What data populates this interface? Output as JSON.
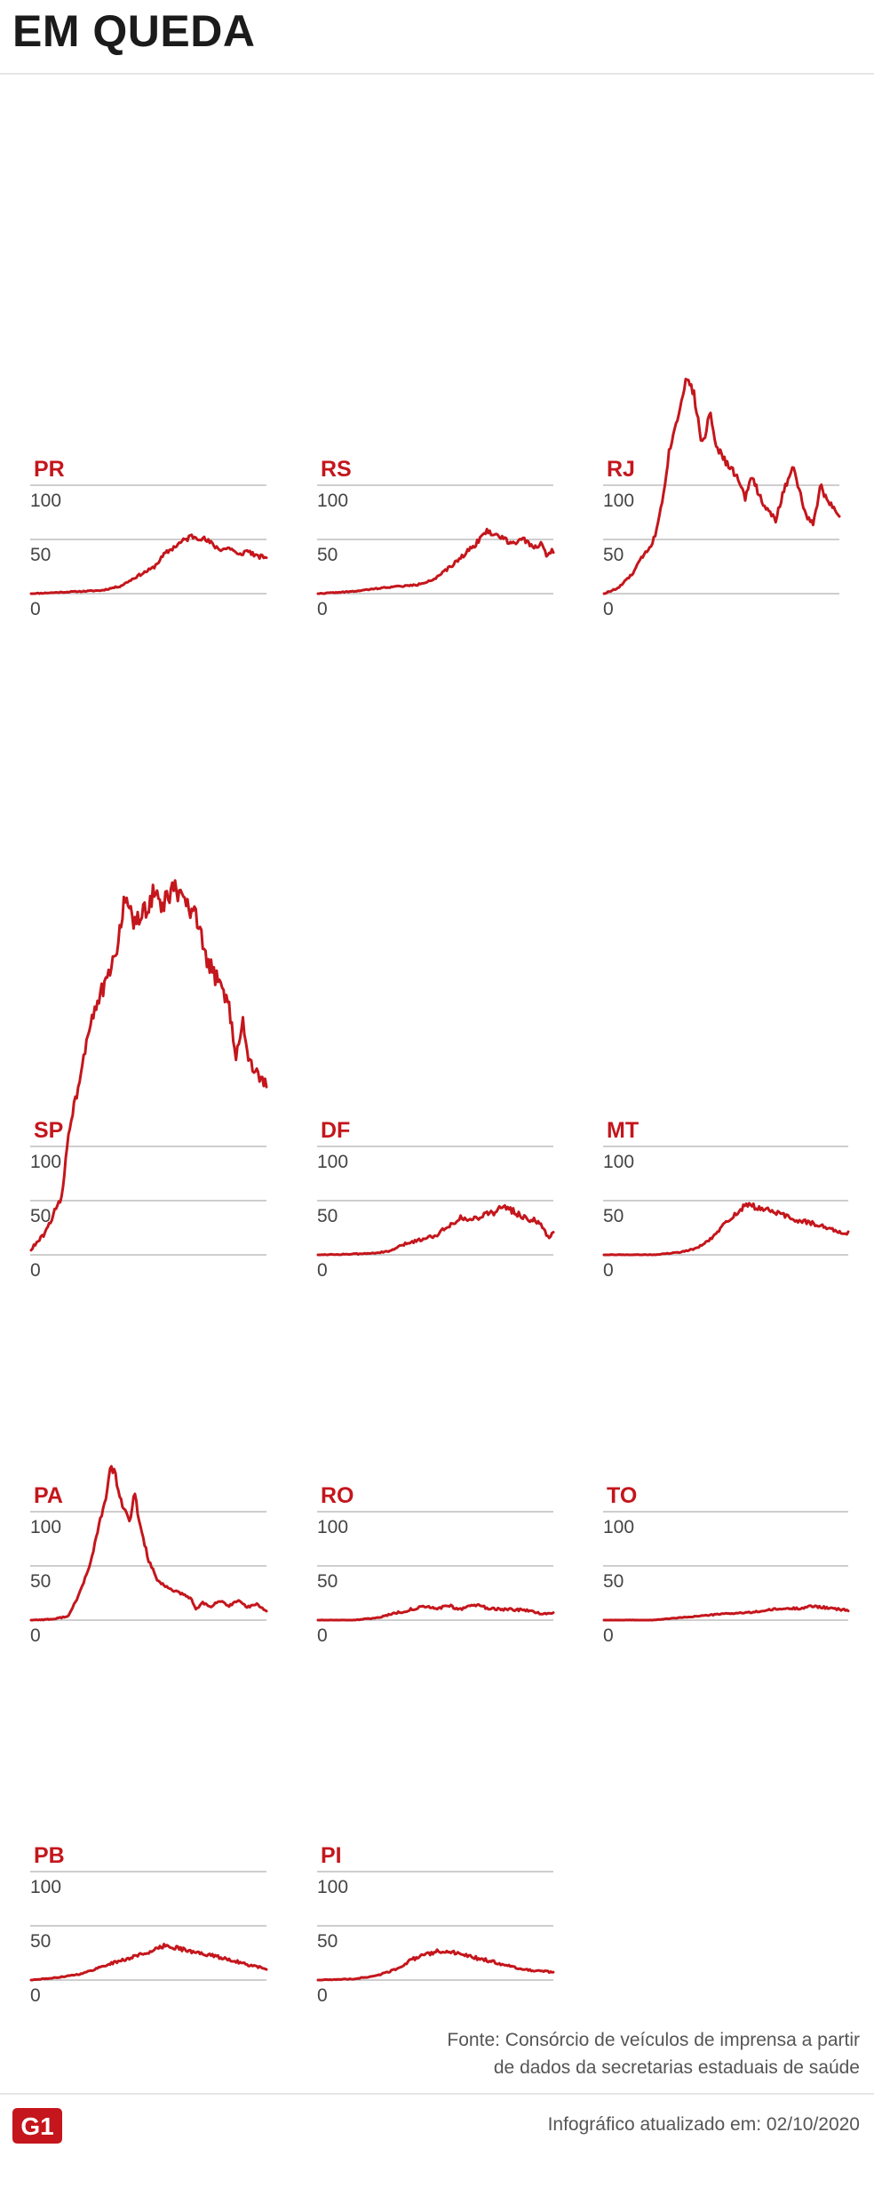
{
  "header": {
    "title": "EM QUEDA"
  },
  "footer": {
    "source_line1": "Fonte: Consórcio de veículos de imprensa a partir",
    "source_line2": "de dados da secretarias estaduais de saúde",
    "logo_text": "G1",
    "updated": "Infográfico atualizado em: 02/10/2020"
  },
  "colors": {
    "line": "#c4161c",
    "grid": "#bdbdbd",
    "label": "#c4161c",
    "tick": "#444444"
  },
  "chart_data": [
    {
      "type": "line",
      "title": "PR",
      "yticks": [
        0,
        50,
        100
      ],
      "ylim": [
        0,
        100
      ],
      "keypoints": [
        [
          0,
          0
        ],
        [
          0.1,
          1
        ],
        [
          0.2,
          2
        ],
        [
          0.3,
          3
        ],
        [
          0.38,
          7
        ],
        [
          0.45,
          16
        ],
        [
          0.52,
          24
        ],
        [
          0.57,
          37
        ],
        [
          0.62,
          45
        ],
        [
          0.68,
          53
        ],
        [
          0.72,
          52
        ],
        [
          0.76,
          47
        ],
        [
          0.8,
          41
        ],
        [
          0.85,
          42
        ],
        [
          0.88,
          35
        ],
        [
          0.92,
          40
        ],
        [
          0.96,
          34
        ],
        [
          1,
          34
        ]
      ],
      "noise": 2.5,
      "seed": 11
    },
    {
      "type": "line",
      "title": "RS",
      "yticks": [
        0,
        50,
        100
      ],
      "ylim": [
        0,
        100
      ],
      "keypoints": [
        [
          0,
          0
        ],
        [
          0.15,
          2
        ],
        [
          0.3,
          6
        ],
        [
          0.42,
          8
        ],
        [
          0.5,
          14
        ],
        [
          0.57,
          26
        ],
        [
          0.63,
          38
        ],
        [
          0.67,
          46
        ],
        [
          0.71,
          57
        ],
        [
          0.74,
          56
        ],
        [
          0.78,
          52
        ],
        [
          0.82,
          47
        ],
        [
          0.87,
          50
        ],
        [
          0.91,
          43
        ],
        [
          0.95,
          46
        ],
        [
          0.97,
          36
        ],
        [
          1,
          40
        ]
      ],
      "noise": 2.5,
      "seed": 22
    },
    {
      "type": "line",
      "title": "RJ",
      "yticks": [
        0,
        50,
        100
      ],
      "ylim": [
        0,
        100
      ],
      "keypoints": [
        [
          0,
          0
        ],
        [
          0.06,
          5
        ],
        [
          0.12,
          18
        ],
        [
          0.16,
          33
        ],
        [
          0.2,
          45
        ],
        [
          0.22,
          55
        ],
        [
          0.25,
          90
        ],
        [
          0.28,
          135
        ],
        [
          0.31,
          160
        ],
        [
          0.34,
          192
        ],
        [
          0.36,
          200
        ],
        [
          0.38,
          185
        ],
        [
          0.42,
          135
        ],
        [
          0.45,
          170
        ],
        [
          0.48,
          135
        ],
        [
          0.52,
          120
        ],
        [
          0.56,
          110
        ],
        [
          0.6,
          88
        ],
        [
          0.63,
          110
        ],
        [
          0.66,
          90
        ],
        [
          0.7,
          75
        ],
        [
          0.73,
          68
        ],
        [
          0.76,
          92
        ],
        [
          0.8,
          118
        ],
        [
          0.83,
          95
        ],
        [
          0.86,
          70
        ],
        [
          0.89,
          65
        ],
        [
          0.92,
          100
        ],
        [
          0.95,
          85
        ],
        [
          0.98,
          80
        ],
        [
          1,
          70
        ]
      ],
      "noise": 5,
      "seed": 33
    },
    {
      "type": "line",
      "title": "SP",
      "yticks": [
        0,
        50,
        100
      ],
      "ylim": [
        0,
        100
      ],
      "keypoints": [
        [
          0,
          5
        ],
        [
          0.06,
          20
        ],
        [
          0.1,
          40
        ],
        [
          0.13,
          52
        ],
        [
          0.16,
          115
        ],
        [
          0.2,
          155
        ],
        [
          0.24,
          205
        ],
        [
          0.28,
          235
        ],
        [
          0.32,
          250
        ],
        [
          0.36,
          278
        ],
        [
          0.4,
          330
        ],
        [
          0.44,
          305
        ],
        [
          0.48,
          315
        ],
        [
          0.52,
          335
        ],
        [
          0.56,
          320
        ],
        [
          0.6,
          340
        ],
        [
          0.65,
          325
        ],
        [
          0.7,
          310
        ],
        [
          0.75,
          270
        ],
        [
          0.8,
          250
        ],
        [
          0.84,
          230
        ],
        [
          0.87,
          185
        ],
        [
          0.9,
          215
        ],
        [
          0.93,
          175
        ],
        [
          0.97,
          165
        ],
        [
          1,
          155
        ]
      ],
      "noise": 9,
      "seed": 44
    },
    {
      "type": "line",
      "title": "DF",
      "yticks": [
        0,
        50,
        100
      ],
      "ylim": [
        0,
        100
      ],
      "keypoints": [
        [
          0,
          0
        ],
        [
          0.2,
          1
        ],
        [
          0.3,
          3
        ],
        [
          0.37,
          10
        ],
        [
          0.45,
          15
        ],
        [
          0.5,
          18
        ],
        [
          0.55,
          26
        ],
        [
          0.6,
          34
        ],
        [
          0.65,
          32
        ],
        [
          0.7,
          37
        ],
        [
          0.75,
          40
        ],
        [
          0.8,
          44
        ],
        [
          0.84,
          39
        ],
        [
          0.88,
          34
        ],
        [
          0.92,
          32
        ],
        [
          0.96,
          24
        ],
        [
          0.98,
          15
        ],
        [
          1,
          22
        ]
      ],
      "noise": 3,
      "seed": 55
    },
    {
      "type": "line",
      "title": "MT",
      "yticks": [
        0,
        50,
        100
      ],
      "ylim": [
        0,
        100
      ],
      "keypoints": [
        [
          0,
          0
        ],
        [
          0.2,
          0
        ],
        [
          0.3,
          2
        ],
        [
          0.38,
          6
        ],
        [
          0.44,
          15
        ],
        [
          0.5,
          30
        ],
        [
          0.55,
          40
        ],
        [
          0.58,
          46
        ],
        [
          0.62,
          44
        ],
        [
          0.66,
          42
        ],
        [
          0.72,
          38
        ],
        [
          0.78,
          32
        ],
        [
          0.84,
          30
        ],
        [
          0.9,
          26
        ],
        [
          0.95,
          22
        ],
        [
          1,
          20
        ]
      ],
      "noise": 2.5,
      "seed": 66
    },
    {
      "type": "line",
      "title": "PA",
      "yticks": [
        0,
        50,
        100
      ],
      "ylim": [
        0,
        100
      ],
      "keypoints": [
        [
          0,
          0
        ],
        [
          0.1,
          1
        ],
        [
          0.16,
          4
        ],
        [
          0.2,
          22
        ],
        [
          0.25,
          50
        ],
        [
          0.28,
          80
        ],
        [
          0.31,
          105
        ],
        [
          0.34,
          142
        ],
        [
          0.36,
          132
        ],
        [
          0.38,
          110
        ],
        [
          0.42,
          90
        ],
        [
          0.44,
          118
        ],
        [
          0.46,
          90
        ],
        [
          0.5,
          55
        ],
        [
          0.54,
          35
        ],
        [
          0.58,
          30
        ],
        [
          0.62,
          26
        ],
        [
          0.66,
          22
        ],
        [
          0.68,
          20
        ],
        [
          0.7,
          10
        ],
        [
          0.73,
          16
        ],
        [
          0.76,
          12
        ],
        [
          0.8,
          18
        ],
        [
          0.84,
          13
        ],
        [
          0.88,
          18
        ],
        [
          0.92,
          12
        ],
        [
          0.96,
          15
        ],
        [
          1,
          8
        ]
      ],
      "noise": 3.5,
      "seed": 77
    },
    {
      "type": "line",
      "title": "RO",
      "yticks": [
        0,
        50,
        100
      ],
      "ylim": [
        0,
        100
      ],
      "keypoints": [
        [
          0,
          0
        ],
        [
          0.15,
          0
        ],
        [
          0.25,
          2
        ],
        [
          0.3,
          5
        ],
        [
          0.38,
          9
        ],
        [
          0.44,
          12
        ],
        [
          0.5,
          11
        ],
        [
          0.56,
          13
        ],
        [
          0.6,
          10
        ],
        [
          0.66,
          14
        ],
        [
          0.72,
          11
        ],
        [
          0.8,
          10
        ],
        [
          0.88,
          9
        ],
        [
          0.95,
          6
        ],
        [
          1,
          7
        ]
      ],
      "noise": 1.5,
      "seed": 88
    },
    {
      "type": "line",
      "title": "TO",
      "yticks": [
        0,
        50,
        100
      ],
      "ylim": [
        0,
        100
      ],
      "keypoints": [
        [
          0,
          0
        ],
        [
          0.2,
          0
        ],
        [
          0.3,
          2
        ],
        [
          0.4,
          4
        ],
        [
          0.5,
          6
        ],
        [
          0.6,
          7
        ],
        [
          0.7,
          10
        ],
        [
          0.8,
          11
        ],
        [
          0.86,
          13
        ],
        [
          0.92,
          11
        ],
        [
          1,
          9
        ]
      ],
      "noise": 1,
      "seed": 99
    },
    {
      "type": "line",
      "title": "PB",
      "yticks": [
        0,
        50,
        100
      ],
      "ylim": [
        0,
        100
      ],
      "keypoints": [
        [
          0,
          0
        ],
        [
          0.1,
          2
        ],
        [
          0.22,
          6
        ],
        [
          0.32,
          14
        ],
        [
          0.4,
          19
        ],
        [
          0.47,
          24
        ],
        [
          0.52,
          27
        ],
        [
          0.57,
          32
        ],
        [
          0.62,
          30
        ],
        [
          0.68,
          26
        ],
        [
          0.74,
          24
        ],
        [
          0.8,
          21
        ],
        [
          0.86,
          18
        ],
        [
          0.92,
          14
        ],
        [
          0.97,
          12
        ],
        [
          1,
          9
        ]
      ],
      "noise": 1.8,
      "seed": 111
    },
    {
      "type": "line",
      "title": "PI",
      "yticks": [
        0,
        50,
        100
      ],
      "ylim": [
        0,
        100
      ],
      "keypoints": [
        [
          0,
          0
        ],
        [
          0.15,
          1
        ],
        [
          0.25,
          4
        ],
        [
          0.33,
          10
        ],
        [
          0.4,
          19
        ],
        [
          0.47,
          24
        ],
        [
          0.52,
          27
        ],
        [
          0.58,
          25
        ],
        [
          0.64,
          22
        ],
        [
          0.7,
          19
        ],
        [
          0.76,
          16
        ],
        [
          0.83,
          12
        ],
        [
          0.9,
          9
        ],
        [
          0.96,
          8
        ],
        [
          1,
          7
        ]
      ],
      "noise": 1.8,
      "seed": 122
    }
  ]
}
